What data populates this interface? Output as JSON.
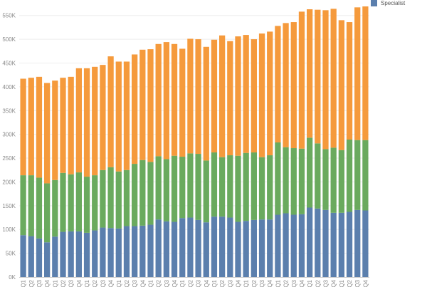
{
  "chart_data": {
    "type": "bar",
    "stacked": true,
    "ylim": [
      0,
      575000
    ],
    "yticks": [
      {
        "value": 0,
        "label": "0K"
      },
      {
        "value": 50000,
        "label": "50K"
      },
      {
        "value": 100000,
        "label": "100K"
      },
      {
        "value": 150000,
        "label": "150K"
      },
      {
        "value": 200000,
        "label": "200K"
      },
      {
        "value": 250000,
        "label": "250K"
      },
      {
        "value": 300000,
        "label": "300K"
      },
      {
        "value": 350000,
        "label": "350K"
      },
      {
        "value": 400000,
        "label": "400K"
      },
      {
        "value": 450000,
        "label": "450K"
      },
      {
        "value": 500000,
        "label": "500K"
      },
      {
        "value": 550000,
        "label": "550K"
      }
    ],
    "grid": true,
    "legend_position": "top-right",
    "categories": [
      "Q1",
      "Q2",
      "Q3",
      "Q4",
      "Q1",
      "Q2",
      "Q3",
      "Q4",
      "Q1",
      "Q2",
      "Q3",
      "Q4",
      "Q1",
      "Q2",
      "Q3",
      "Q4",
      "Q1",
      "Q2",
      "Q3",
      "Q4",
      "Q1",
      "Q2",
      "Q3",
      "Q4",
      "Q1",
      "Q2",
      "Q3",
      "Q4",
      "Q1",
      "Q2",
      "Q3",
      "Q4",
      "Q1",
      "Q2",
      "Q3",
      "Q4",
      "Q1",
      "Q2",
      "Q3",
      "Q4",
      "Q1",
      "Q2",
      "Q3",
      "Q4"
    ],
    "series": [
      {
        "name": "Specialist",
        "color": "#5b7fad",
        "values": [
          88000,
          86000,
          81000,
          73000,
          85000,
          95000,
          96000,
          96000,
          93000,
          98000,
          104000,
          103000,
          102000,
          107000,
          107000,
          108000,
          110000,
          121000,
          117000,
          116000,
          124000,
          125000,
          120000,
          115000,
          127000,
          127000,
          125000,
          116000,
          118000,
          120000,
          121000,
          121000,
          131000,
          134000,
          131000,
          132000,
          146000,
          144000,
          141000,
          135000,
          135000,
          137000,
          141000,
          140000
        ]
      },
      {
        "color": "#6aaa5e",
        "values": [
          126000,
          128000,
          128000,
          124000,
          119000,
          124000,
          120000,
          124000,
          118000,
          116000,
          121000,
          128000,
          120000,
          118000,
          131000,
          138000,
          132000,
          133000,
          131000,
          139000,
          129000,
          135000,
          139000,
          130000,
          135000,
          125000,
          131000,
          139000,
          143000,
          142000,
          131000,
          135000,
          152000,
          139000,
          140000,
          138000,
          147000,
          137000,
          128000,
          137000,
          132000,
          152000,
          147000,
          148000
        ]
      },
      {
        "color": "#f59a3c",
        "values": [
          203000,
          205000,
          212000,
          211000,
          209000,
          200000,
          205000,
          219000,
          228000,
          228000,
          221000,
          233000,
          231000,
          228000,
          230000,
          232000,
          237000,
          236000,
          246000,
          235000,
          227000,
          241000,
          241000,
          239000,
          237000,
          256000,
          240000,
          251000,
          248000,
          238000,
          260000,
          260000,
          245000,
          261000,
          265000,
          288000,
          270000,
          281000,
          292000,
          292000,
          273000,
          247000,
          279000,
          281000
        ]
      }
    ]
  }
}
